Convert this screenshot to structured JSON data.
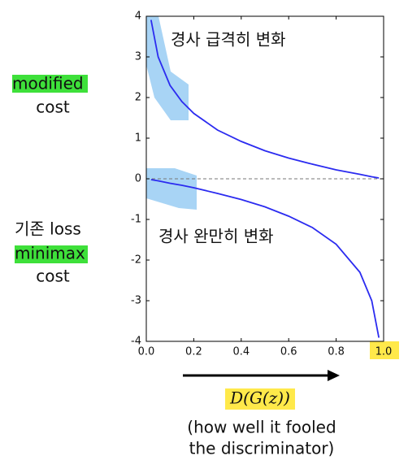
{
  "chart_data": {
    "type": "line",
    "x": [
      0.02,
      0.05,
      0.1,
      0.15,
      0.2,
      0.3,
      0.4,
      0.5,
      0.6,
      0.7,
      0.8,
      0.9,
      0.95,
      0.98
    ],
    "series": [
      {
        "color": "#2b2bf0",
        "values": [
          3.91,
          3.0,
          2.3,
          1.9,
          1.61,
          1.2,
          0.92,
          0.69,
          0.51,
          0.36,
          0.22,
          0.11,
          0.05,
          0.02
        ]
      },
      {
        "color": "#2b2bf0",
        "values": [
          -0.02,
          -0.05,
          -0.11,
          -0.16,
          -0.22,
          -0.36,
          -0.51,
          -0.69,
          -0.92,
          -1.2,
          -1.61,
          -2.3,
          -3.0,
          -3.91
        ]
      }
    ],
    "xlim": [
      0,
      1
    ],
    "ylim": [
      -4,
      4
    ],
    "xticks": [
      {
        "value": 0,
        "label": "0.0"
      },
      0.2,
      0.4,
      0.6,
      0.8,
      {
        "value": 1,
        "label": "1.0"
      }
    ],
    "yticks": [
      -4,
      -3,
      -2,
      -1,
      0,
      1,
      2,
      3,
      4
    ],
    "annotations": [
      "경사 급격히 변화",
      "경사 완만히 변화"
    ],
    "side_labels": [
      "modified",
      "cost",
      "기존 loss",
      "minimax",
      "cost"
    ],
    "x_label": "D(G(z))",
    "x_label_note": [
      "(how well it fooled",
      "the discriminator)"
    ]
  }
}
